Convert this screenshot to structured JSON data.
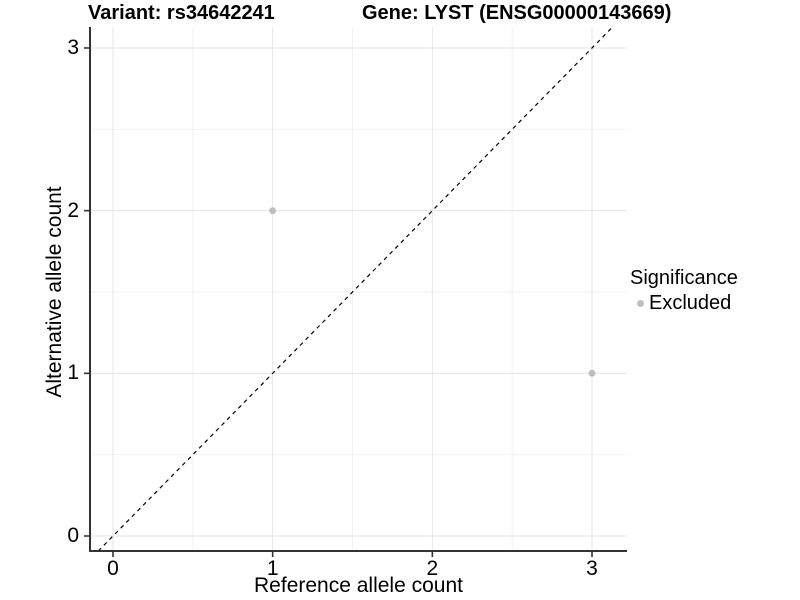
{
  "chart_data": {
    "type": "scatter",
    "title_left": "Variant: rs34642241",
    "title_right": "Gene: LYST (ENSG00000143669)",
    "xlabel": "Reference allele count",
    "ylabel": "Alternative allele count",
    "xlim": [
      -0.15,
      3.25
    ],
    "ylim": [
      -0.15,
      3.15
    ],
    "xticks": [
      0,
      1,
      2,
      3
    ],
    "yticks": [
      0,
      1,
      2,
      3
    ],
    "minor_gridlines_x": [
      0.5,
      1.5,
      2.5
    ],
    "minor_gridlines_y": [
      0.5,
      1.5,
      2.5
    ],
    "grid": true,
    "points": [
      {
        "x": 1,
        "y": 2,
        "significance": "Excluded"
      },
      {
        "x": 3,
        "y": 1,
        "significance": "Excluded"
      }
    ],
    "identity_line": {
      "style": "dashed",
      "equation": "y = x",
      "color": "#000000"
    },
    "legend": {
      "title": "Significance",
      "position": "right",
      "items": [
        {
          "label": "Excluded",
          "color": "#bebebe"
        }
      ]
    },
    "colors": {
      "background": "#ffffff",
      "text": "#000000",
      "axis_line": "#333333",
      "tick_mark": "#333333",
      "grid_major": "#e6e6e6",
      "grid_minor": "#f2f2f2",
      "point": "#bebebe",
      "dashed_line": "#000000"
    }
  }
}
